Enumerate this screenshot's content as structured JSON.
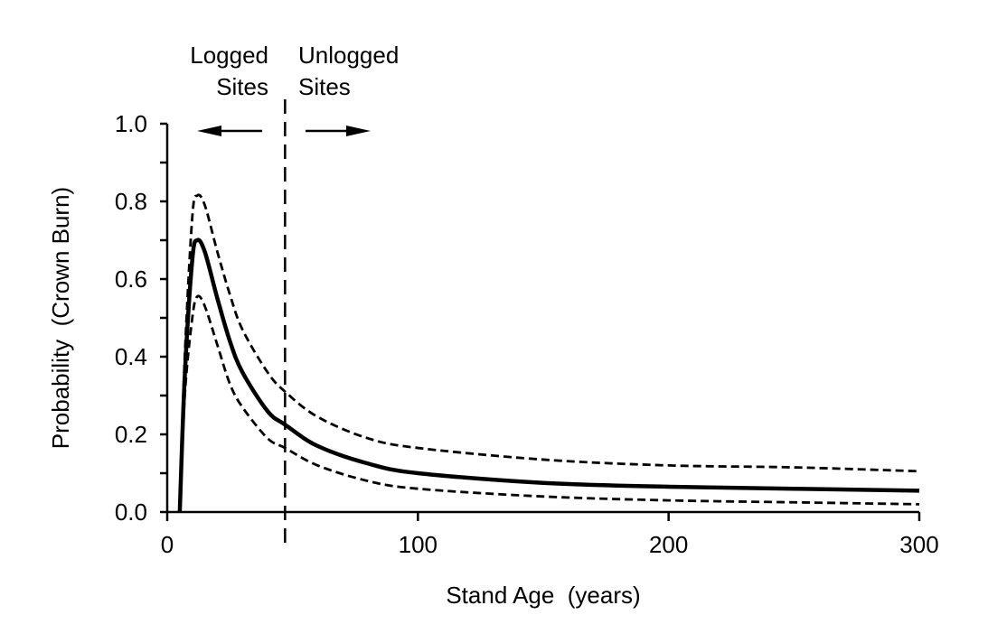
{
  "chart_data": {
    "type": "line",
    "title": "",
    "xlabel": "Stand Age  (years)",
    "ylabel": "Probability  (Crown Burn)",
    "xlim": [
      0,
      300
    ],
    "ylim": [
      0,
      1.0
    ],
    "xticks": [
      "0",
      "100",
      "200",
      "300"
    ],
    "yticks": [
      "0.0",
      "0.2",
      "0.4",
      "0.6",
      "0.8",
      "1.0"
    ],
    "grid": false,
    "annotations": {
      "left_label": [
        "Logged",
        "Sites"
      ],
      "right_label": [
        "Unlogged",
        "Sites"
      ],
      "divider_x": 47
    },
    "x": [
      5,
      7,
      10,
      12,
      15,
      20,
      25,
      30,
      40,
      47,
      60,
      80,
      100,
      150,
      200,
      250,
      300
    ],
    "series": [
      {
        "style": "solid",
        "values": [
          0,
          0.35,
          0.65,
          0.7,
          0.67,
          0.55,
          0.44,
          0.36,
          0.26,
          0.225,
          0.17,
          0.125,
          0.1,
          0.075,
          0.065,
          0.06,
          0.055
        ]
      },
      {
        "style": "dashed",
        "values": [
          0,
          0.4,
          0.76,
          0.815,
          0.79,
          0.67,
          0.56,
          0.47,
          0.36,
          0.31,
          0.245,
          0.19,
          0.165,
          0.135,
          0.12,
          0.115,
          0.105
        ]
      },
      {
        "style": "dashed",
        "values": [
          0,
          0.3,
          0.5,
          0.555,
          0.53,
          0.43,
          0.33,
          0.27,
          0.19,
          0.165,
          0.12,
          0.08,
          0.06,
          0.04,
          0.03,
          0.025,
          0.02
        ]
      }
    ]
  }
}
